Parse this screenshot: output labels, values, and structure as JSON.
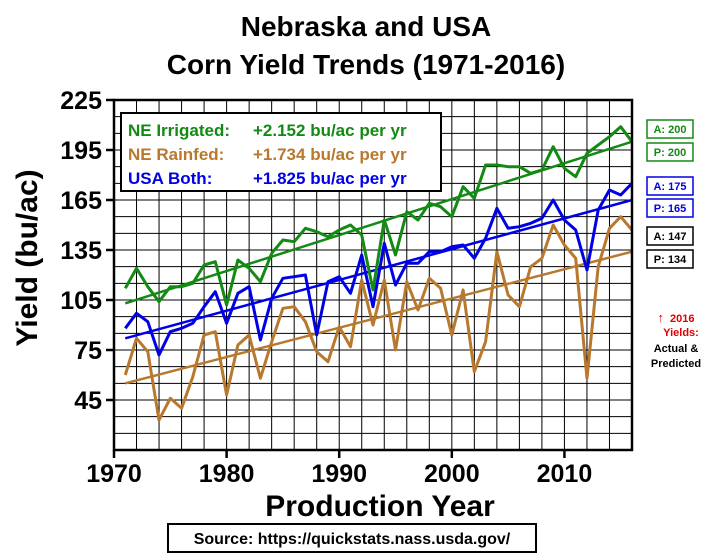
{
  "chart_data": {
    "type": "line",
    "title_line1": "Nebraska and USA",
    "title_line2": "Corn Yield Trends (1971-2016)",
    "xlabel": "Production Year",
    "ylabel": "Yield (bu/ac)",
    "xlim": [
      1970,
      2016
    ],
    "ylim": [
      15,
      225
    ],
    "x_ticks": [
      1970,
      1980,
      1990,
      2000,
      2010
    ],
    "y_ticks": [
      45,
      75,
      105,
      135,
      165,
      195,
      225
    ],
    "grid": true,
    "legend_position": "top-left",
    "x": [
      1971,
      1972,
      1973,
      1974,
      1975,
      1976,
      1977,
      1978,
      1979,
      1980,
      1981,
      1982,
      1983,
      1984,
      1985,
      1986,
      1987,
      1988,
      1989,
      1990,
      1991,
      1992,
      1993,
      1994,
      1995,
      1996,
      1997,
      1998,
      1999,
      2000,
      2001,
      2002,
      2003,
      2004,
      2005,
      2006,
      2007,
      2008,
      2009,
      2010,
      2011,
      2012,
      2013,
      2014,
      2015,
      2016
    ],
    "series": [
      {
        "name": "NE Irrigated",
        "legend_label": "NE Irrigated:",
        "trend_label": "+2.152 bu/ac per yr",
        "color": "#138a13",
        "values": [
          112,
          124,
          113,
          104,
          113,
          113,
          115,
          126,
          128,
          102,
          129,
          124,
          116,
          133,
          141,
          140,
          148,
          146,
          143,
          147,
          150,
          144,
          111,
          153,
          132,
          158,
          153,
          163,
          161,
          155,
          173,
          166,
          186,
          186,
          185,
          185,
          181,
          183,
          197,
          184,
          179,
          193,
          198,
          203,
          209,
          200
        ],
        "trend_start": 103,
        "trend_end": 200
      },
      {
        "name": "NE Rainfed",
        "legend_label": "NE Rainfed:",
        "trend_label": "+1.734 bu/ac per yr",
        "color": "#b8782e",
        "values": [
          60,
          82,
          74,
          33,
          46,
          40,
          59,
          84,
          86,
          48,
          78,
          84,
          58,
          80,
          100,
          101,
          92,
          74,
          68,
          89,
          77,
          117,
          90,
          117,
          75,
          116,
          99,
          118,
          112,
          84,
          111,
          62,
          80,
          134,
          108,
          101,
          125,
          130,
          150,
          138,
          130,
          58,
          125,
          148,
          155,
          147
        ],
        "trend_start": 55,
        "trend_end": 134
      },
      {
        "name": "USA Both",
        "legend_label": "USA Both:",
        "trend_label": "+1.825 bu/ac per yr",
        "color": "#0000e6",
        "values": [
          88,
          97,
          92,
          72,
          86,
          88,
          91,
          101,
          110,
          91,
          109,
          113,
          81,
          106,
          118,
          119,
          120,
          84,
          116,
          119,
          109,
          132,
          101,
          139,
          114,
          127,
          127,
          134,
          134,
          137,
          138,
          130,
          142,
          160,
          148,
          149,
          151,
          154,
          165,
          153,
          147,
          123,
          159,
          171,
          168,
          175
        ],
        "trend_start": 82,
        "trend_end": 165
      }
    ],
    "side_labels": [
      {
        "text": "A: 200",
        "color": "#138a13"
      },
      {
        "text": "P: 200",
        "color": "#138a13"
      },
      {
        "text": "A: 175",
        "color": "#0000e6"
      },
      {
        "text": "P: 165",
        "color": "#0000e6"
      },
      {
        "text": "A: 147",
        "color": "#000000"
      },
      {
        "text": "P: 134",
        "color": "#000000"
      }
    ],
    "note": {
      "arrow": "↑",
      "line1": "2016",
      "line2": "Yields:",
      "line3": "Actual &",
      "line4": "Predicted",
      "red_color": "#e00000"
    },
    "source": "Source: https://quickstats.nass.usda.gov/"
  }
}
